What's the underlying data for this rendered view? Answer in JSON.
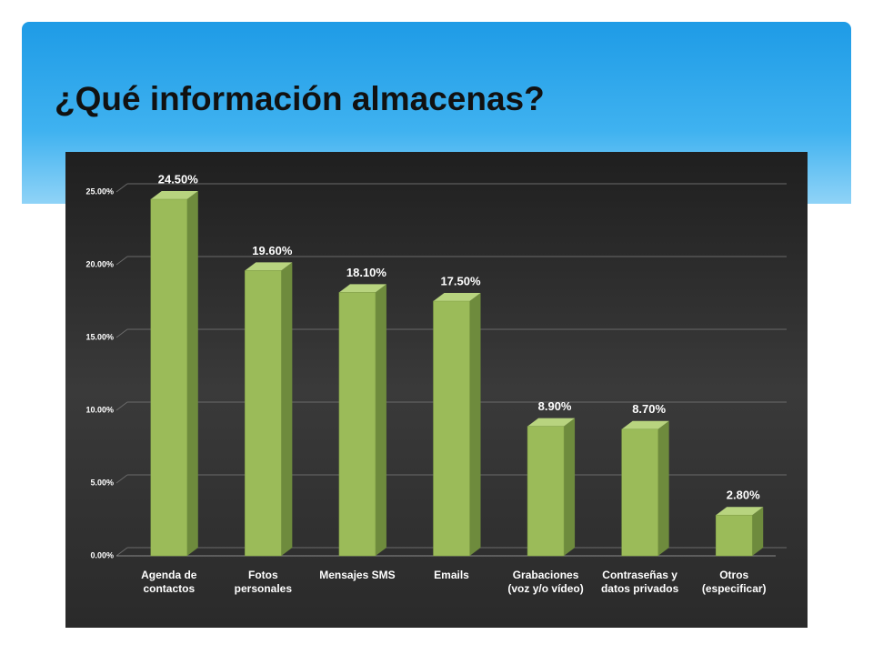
{
  "chart_data": {
    "type": "bar",
    "title": "¿Qué información almacenas?",
    "categories": [
      "Agenda de contactos",
      "Fotos personales",
      "Mensajes SMS",
      "Emails",
      "Grabaciones (voz y/o vídeo)",
      "Contraseñas y datos privados",
      "Otros (especificar)"
    ],
    "values": [
      24.5,
      19.6,
      18.1,
      17.5,
      8.9,
      8.7,
      2.8
    ],
    "value_labels": [
      "24.50%",
      "19.60%",
      "18.10%",
      "17.50%",
      "8.90%",
      "8.70%",
      "2.80%"
    ],
    "color": "#9bbb59",
    "ylim": [
      0,
      25
    ],
    "yticks": [
      {
        "value": 0,
        "label": "0.00%"
      },
      {
        "value": 5,
        "label": "5.00%"
      },
      {
        "value": 10,
        "label": "10.00%"
      },
      {
        "value": 15,
        "label": "15.00%"
      },
      {
        "value": 20,
        "label": "20.00%"
      },
      {
        "value": 25,
        "label": "25.00%"
      }
    ],
    "grid": true
  }
}
